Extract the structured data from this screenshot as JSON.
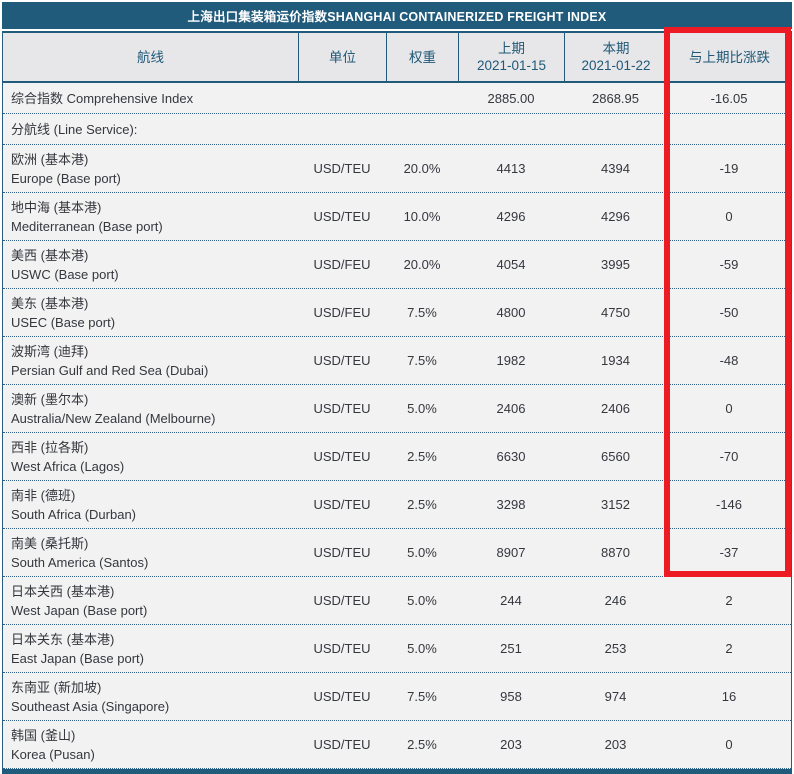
{
  "title": "上海出口集装箱运价指数SHANGHAI CONTAINERIZED FREIGHT INDEX",
  "colors": {
    "theme_bar": "#215b7c",
    "header_text": "#1f5878",
    "header_bg": "#e7e7e9",
    "row_bg": "#f2f2f3",
    "highlight_box": "#ed1c24"
  },
  "table": {
    "columns": {
      "route": "航线",
      "unit": "单位",
      "weight": "权重",
      "prev_label": "上期",
      "prev_date": "2021-01-15",
      "curr_label": "本期",
      "curr_date": "2021-01-22",
      "change": "与上期比涨跌"
    },
    "rows": [
      {
        "lines": [
          "综合指数 Comprehensive Index"
        ],
        "unit": "",
        "weight": "",
        "prev": "2885.00",
        "curr": "2868.95",
        "change": "-16.05"
      },
      {
        "lines": [
          "分航线 (Line Service):"
        ],
        "unit": "",
        "weight": "",
        "prev": "",
        "curr": "",
        "change": ""
      },
      {
        "lines": [
          "欧洲 (基本港)",
          "Europe (Base port)"
        ],
        "unit": "USD/TEU",
        "weight": "20.0%",
        "prev": "4413",
        "curr": "4394",
        "change": "-19"
      },
      {
        "lines": [
          "地中海 (基本港)",
          "Mediterranean (Base port)"
        ],
        "unit": "USD/TEU",
        "weight": "10.0%",
        "prev": "4296",
        "curr": "4296",
        "change": "0"
      },
      {
        "lines": [
          "美西 (基本港)",
          "USWC (Base port)"
        ],
        "unit": "USD/FEU",
        "weight": "20.0%",
        "prev": "4054",
        "curr": "3995",
        "change": "-59"
      },
      {
        "lines": [
          "美东 (基本港)",
          "USEC (Base port)"
        ],
        "unit": "USD/FEU",
        "weight": "7.5%",
        "prev": "4800",
        "curr": "4750",
        "change": "-50"
      },
      {
        "lines": [
          "波斯湾 (迪拜)",
          "Persian Gulf and Red Sea (Dubai)"
        ],
        "unit": "USD/TEU",
        "weight": "7.5%",
        "prev": "1982",
        "curr": "1934",
        "change": "-48"
      },
      {
        "lines": [
          "澳新 (墨尔本)",
          "Australia/New Zealand (Melbourne)"
        ],
        "unit": "USD/TEU",
        "weight": "5.0%",
        "prev": "2406",
        "curr": "2406",
        "change": "0"
      },
      {
        "lines": [
          "西非 (拉各斯)",
          "West Africa (Lagos)"
        ],
        "unit": "USD/TEU",
        "weight": "2.5%",
        "prev": "6630",
        "curr": "6560",
        "change": "-70"
      },
      {
        "lines": [
          "南非 (德班)",
          "South Africa (Durban)"
        ],
        "unit": "USD/TEU",
        "weight": "2.5%",
        "prev": "3298",
        "curr": "3152",
        "change": "-146"
      },
      {
        "lines": [
          "南美 (桑托斯)",
          "South America (Santos)"
        ],
        "unit": "USD/TEU",
        "weight": "5.0%",
        "prev": "8907",
        "curr": "8870",
        "change": "-37"
      },
      {
        "lines": [
          "日本关西 (基本港)",
          "West Japan (Base port)"
        ],
        "unit": "USD/TEU",
        "weight": "5.0%",
        "prev": "244",
        "curr": "246",
        "change": "2"
      },
      {
        "lines": [
          "日本关东 (基本港)",
          "East Japan (Base port)"
        ],
        "unit": "USD/TEU",
        "weight": "5.0%",
        "prev": "251",
        "curr": "253",
        "change": "2"
      },
      {
        "lines": [
          "东南亚 (新加坡)",
          "Southeast Asia (Singapore)"
        ],
        "unit": "USD/TEU",
        "weight": "7.5%",
        "prev": "958",
        "curr": "974",
        "change": "16"
      },
      {
        "lines": [
          "韩国 (釜山)",
          "Korea (Pusan)"
        ],
        "unit": "USD/TEU",
        "weight": "2.5%",
        "prev": "203",
        "curr": "203",
        "change": "0"
      }
    ]
  }
}
